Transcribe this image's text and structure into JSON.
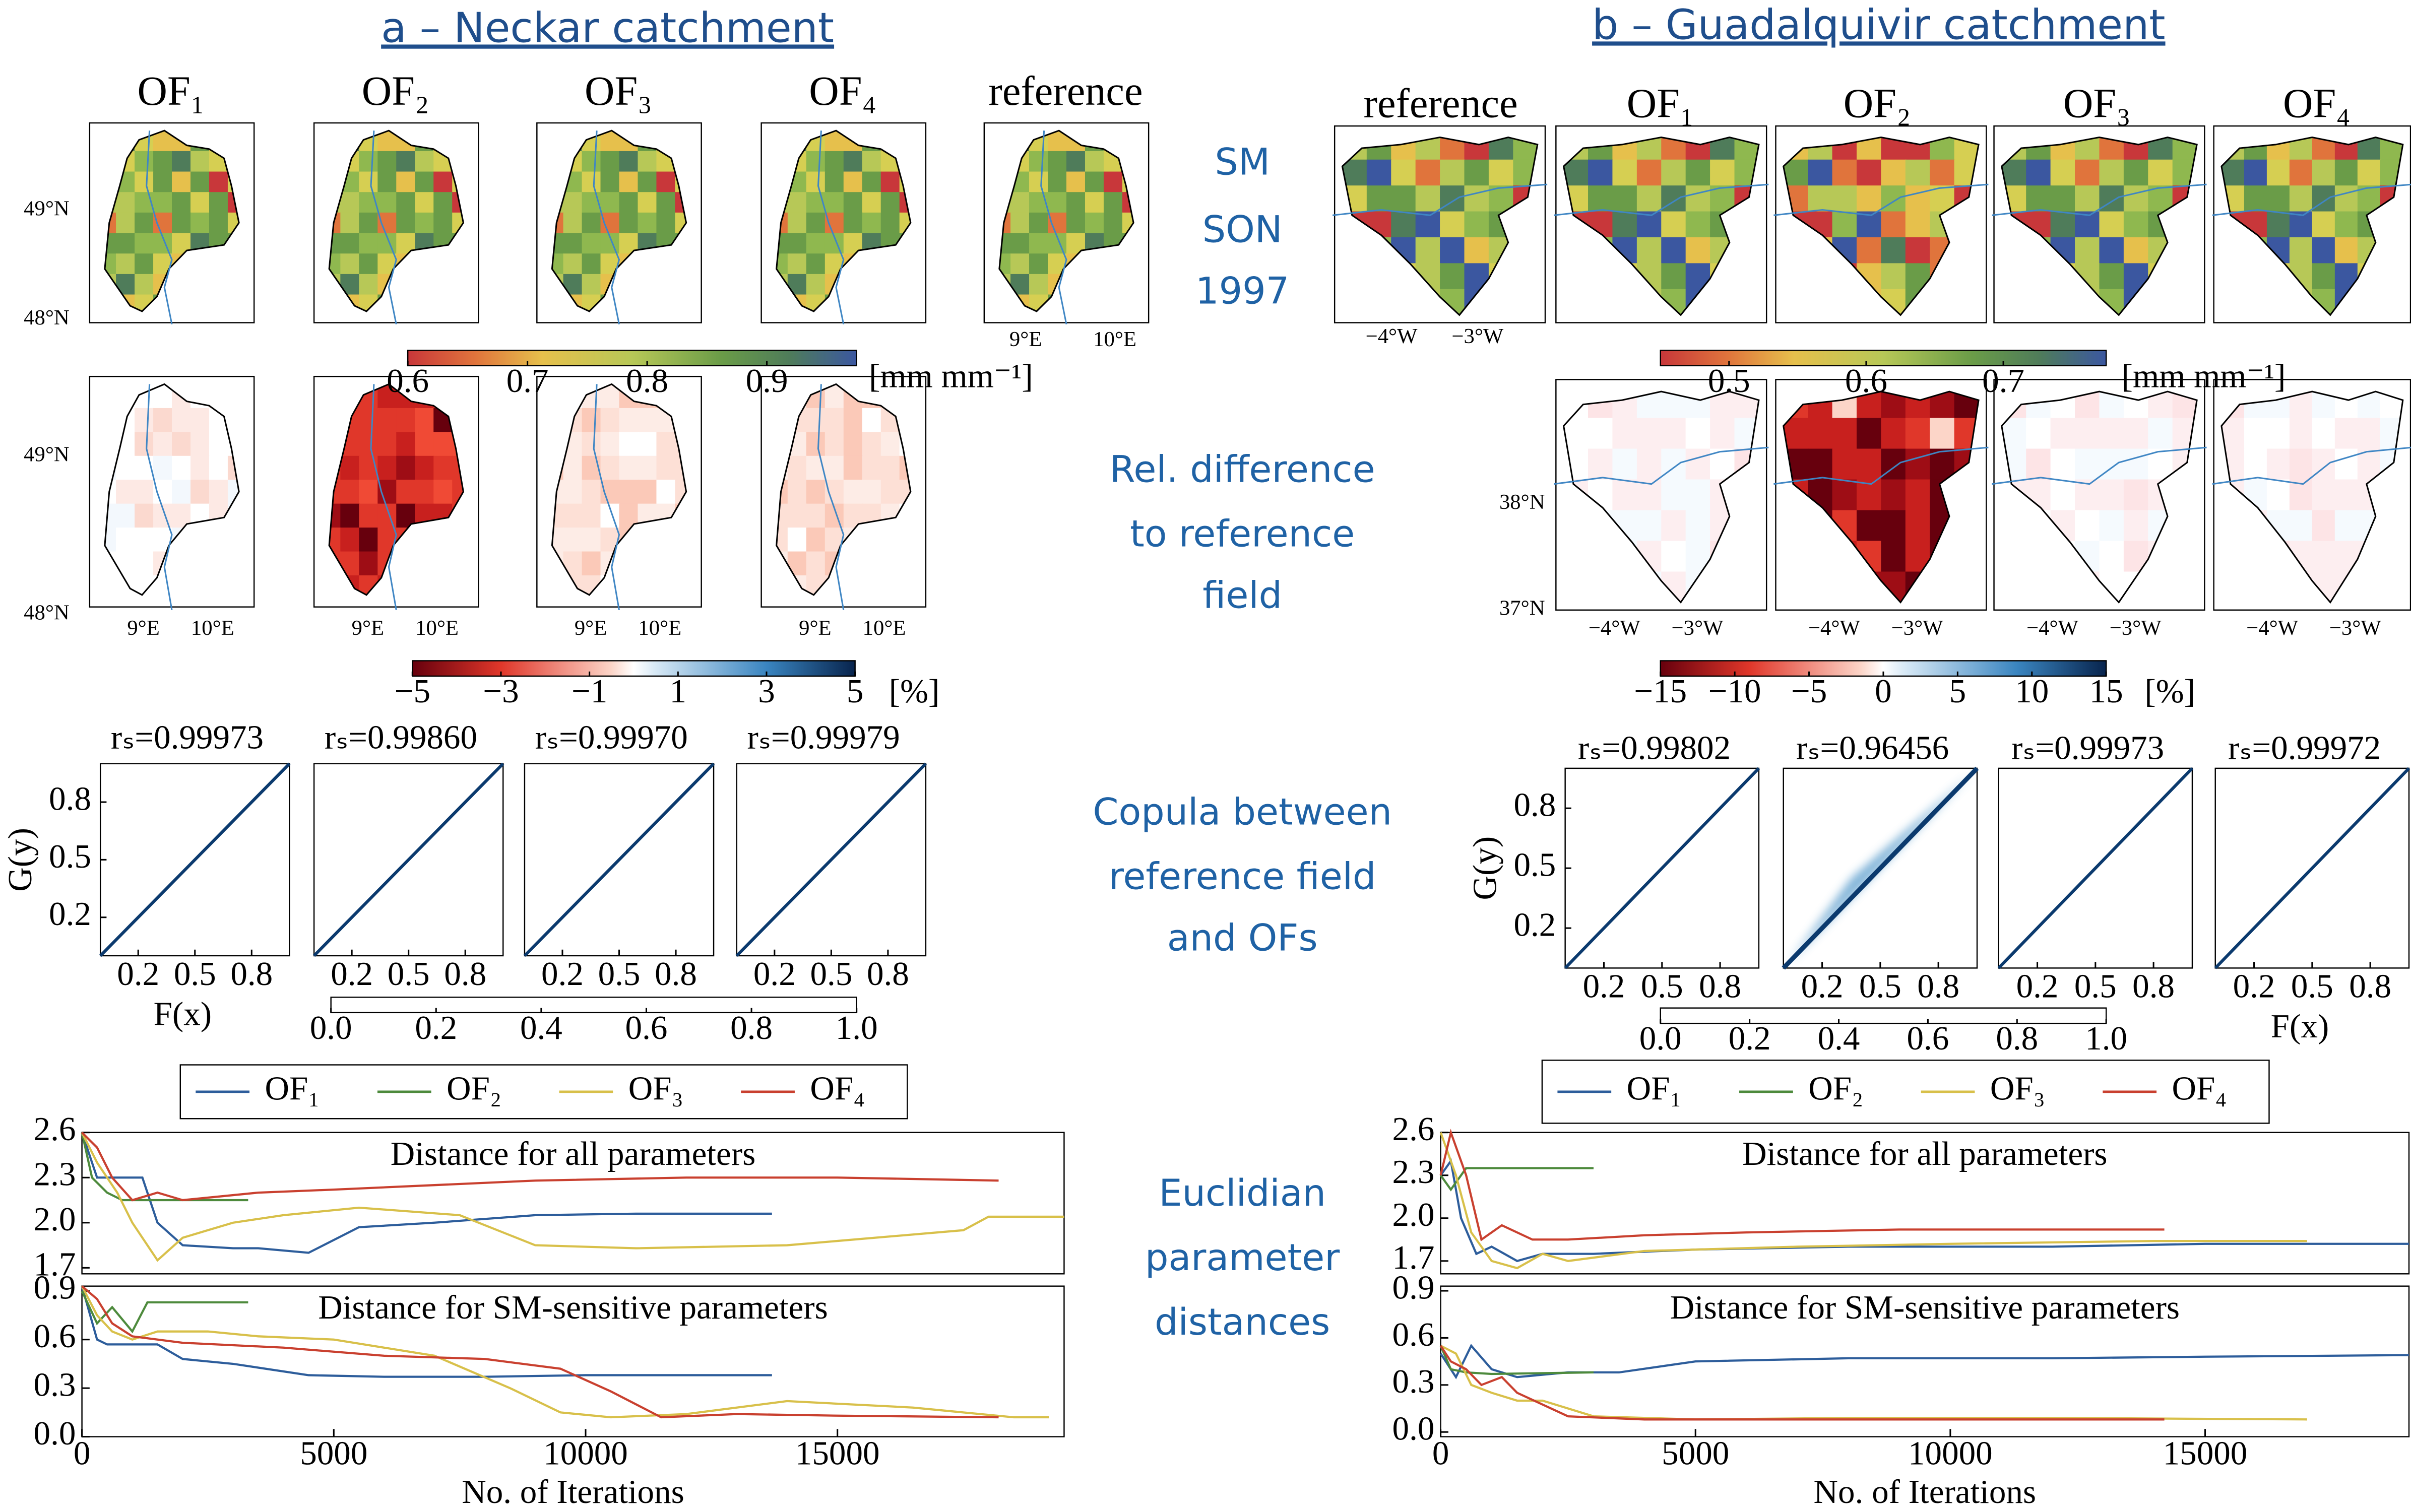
{
  "panels": [
    {
      "title": "a – Neckar catchment",
      "map_titles": [
        "OF₁",
        "OF₂",
        "OF₃",
        "OF₄",
        "reference"
      ],
      "lat_labels": [
        "49°N",
        "48°N"
      ],
      "lon_labels": [
        "9°E",
        "10°E"
      ],
      "sm_colorbar": {
        "lim": [
          0.6,
          0.975
        ],
        "ticks": [
          0.6,
          0.7,
          0.8,
          0.9
        ],
        "unit": "[mm mm⁻¹]"
      },
      "diff_colorbar": {
        "lim": [
          -5,
          5
        ],
        "ticks": [
          {
            "value": -5,
            "label": "−5"
          },
          {
            "value": -3,
            "label": "−3"
          },
          {
            "value": -1,
            "label": "−1"
          },
          1,
          3,
          5
        ],
        "unit": "[%]"
      },
      "copula": {
        "rs": [
          "rₛ=0.99973",
          "rₛ=0.99860",
          "rₛ=0.99970",
          "rₛ=0.99979"
        ],
        "lim": [
          0,
          1
        ],
        "ticks": [
          0.2,
          0.5,
          0.8
        ],
        "xlabel": "F(x)",
        "ylabel": "G(y)",
        "colorbar": {
          "lim": [
            0,
            1
          ],
          "ticks": [
            {
              "value": 0,
              "label": "0.0"
            },
            0.2,
            0.4,
            0.6,
            0.8,
            {
              "value": 1,
              "label": "1.0"
            }
          ]
        }
      }
    },
    {
      "title": "b – Guadalquivir catchment",
      "map_titles": [
        "reference",
        "OF₁",
        "OF₂",
        "OF₃",
        "OF₄"
      ],
      "lat_labels": [
        "38°N",
        "37°N"
      ],
      "lon_labels": [
        "−4°W",
        "−3°W"
      ],
      "sm_colorbar": {
        "lim": [
          0.45,
          0.775
        ],
        "ticks": [
          0.5,
          0.6,
          0.7
        ],
        "unit": "[mm mm⁻¹]"
      },
      "diff_colorbar": {
        "lim": [
          -15,
          15
        ],
        "ticks": [
          {
            "value": -15,
            "label": "−15"
          },
          {
            "value": -10,
            "label": "−10"
          },
          {
            "value": -5,
            "label": "−5"
          },
          0,
          5,
          10,
          15
        ],
        "unit": "[%]"
      },
      "copula": {
        "rs": [
          "rₛ=0.99802",
          "rₛ=0.96456",
          "rₛ=0.99973",
          "rₛ=0.99972"
        ],
        "lim": [
          0,
          1
        ],
        "ticks": [
          0.2,
          0.5,
          0.8
        ],
        "xlabel": "F(x)",
        "ylabel": "G(y)",
        "colorbar": {
          "lim": [
            0,
            1
          ],
          "ticks": [
            {
              "value": 0,
              "label": "0.0"
            },
            0.2,
            0.4,
            0.6,
            0.8,
            {
              "value": 1,
              "label": "1.0"
            }
          ]
        }
      }
    }
  ],
  "row_labels": [
    [
      "SM",
      "SON",
      "1997"
    ],
    [
      "Rel. difference",
      "to reference",
      "field"
    ],
    [
      "Copula between",
      "reference field",
      "and OFs"
    ],
    [
      "Euclidian",
      "parameter",
      "distances"
    ]
  ],
  "chart_data": [
    {
      "type": "line",
      "title": "Distance for all parameters",
      "xlim": [
        0,
        19500
      ],
      "ylim": [
        1.66,
        2.6
      ],
      "yticks": [
        1.7,
        {
          "value": 2,
          "label": "2.0"
        },
        2.3,
        2.6
      ],
      "series": [
        {
          "name": "OF₁",
          "color": "#2d5d9b",
          "x": [
            0,
            300,
            600,
            1200,
            1500,
            2000,
            3000,
            3500,
            4500,
            5500,
            7000,
            9000,
            11000,
            13700
          ],
          "values": [
            2.6,
            2.3,
            2.3,
            2.3,
            2.0,
            1.85,
            1.83,
            1.83,
            1.8,
            1.97,
            2.0,
            2.05,
            2.06,
            2.06
          ]
        },
        {
          "name": "OF₂",
          "color": "#4d8a3c",
          "x": [
            0,
            200,
            500,
            800,
            1200,
            3300
          ],
          "values": [
            2.6,
            2.3,
            2.2,
            2.15,
            2.15,
            2.15
          ]
        },
        {
          "name": "OF₃",
          "color": "#d8c04a",
          "x": [
            0,
            300,
            700,
            1000,
            1500,
            2000,
            2500,
            3000,
            4000,
            5500,
            7500,
            9000,
            11000,
            14000,
            17500,
            18000,
            19500
          ],
          "values": [
            2.6,
            2.4,
            2.2,
            2.0,
            1.75,
            1.9,
            1.95,
            2.0,
            2.05,
            2.1,
            2.05,
            1.85,
            1.83,
            1.85,
            1.95,
            2.04,
            2.04
          ]
        },
        {
          "name": "OF₄",
          "color": "#c9402f",
          "x": [
            0,
            300,
            600,
            1000,
            1500,
            2000,
            3500,
            5000,
            7000,
            9000,
            12000,
            15000,
            18200
          ],
          "values": [
            2.6,
            2.5,
            2.3,
            2.15,
            2.2,
            2.15,
            2.2,
            2.22,
            2.25,
            2.28,
            2.3,
            2.3,
            2.28
          ]
        }
      ]
    },
    {
      "type": "line",
      "title": "Distance for SM-sensitive parameters",
      "xlabel": "No. of Iterations",
      "xlim": [
        0,
        19500
      ],
      "ylim": [
        0,
        0.93
      ],
      "xticks": [
        0,
        5000,
        10000,
        15000
      ],
      "yticks": [
        {
          "value": 0,
          "label": "0.0"
        },
        0.3,
        0.6,
        0.9
      ],
      "series": [
        {
          "color": "#2d5d9b",
          "x": [
            0,
            300,
            500,
            1500,
            2000,
            3000,
            4500,
            6000,
            8000,
            10000,
            13700
          ],
          "values": [
            0.93,
            0.6,
            0.57,
            0.57,
            0.48,
            0.45,
            0.38,
            0.37,
            0.37,
            0.38,
            0.38
          ]
        },
        {
          "color": "#4d8a3c",
          "x": [
            0,
            300,
            600,
            1000,
            1300,
            3300
          ],
          "values": [
            0.9,
            0.7,
            0.8,
            0.65,
            0.83,
            0.83
          ]
        },
        {
          "color": "#d8c04a",
          "x": [
            0,
            300,
            600,
            1000,
            1500,
            2500,
            3500,
            5000,
            7000,
            8500,
            9500,
            10500,
            12000,
            14000,
            16500,
            18500,
            19200
          ],
          "values": [
            0.93,
            0.75,
            0.65,
            0.6,
            0.65,
            0.65,
            0.62,
            0.6,
            0.5,
            0.3,
            0.15,
            0.12,
            0.14,
            0.22,
            0.18,
            0.12,
            0.12
          ]
        },
        {
          "color": "#c9402f",
          "x": [
            0,
            300,
            600,
            1000,
            2000,
            4000,
            6000,
            8000,
            9500,
            10500,
            11500,
            13000,
            15000,
            18200
          ],
          "values": [
            0.93,
            0.85,
            0.7,
            0.62,
            0.58,
            0.55,
            0.5,
            0.48,
            0.42,
            0.28,
            0.12,
            0.14,
            0.13,
            0.12
          ]
        }
      ]
    },
    {
      "type": "line",
      "title": "Distance for all parameters",
      "xlim": [
        0,
        19000
      ],
      "ylim": [
        1.61,
        2.6
      ],
      "yticks": [
        1.7,
        {
          "value": 2,
          "label": "2.0"
        },
        2.3,
        2.6
      ],
      "series": [
        {
          "name": "OF₁",
          "color": "#2d5d9b",
          "x": [
            0,
            200,
            400,
            700,
            1000,
            1500,
            2000,
            3000,
            5000,
            8000,
            12000,
            15000,
            19000
          ],
          "values": [
            2.3,
            2.4,
            2.0,
            1.75,
            1.8,
            1.7,
            1.75,
            1.75,
            1.78,
            1.8,
            1.8,
            1.82,
            1.82
          ]
        },
        {
          "name": "OF₂",
          "color": "#4d8a3c",
          "x": [
            0,
            200,
            500,
            1000,
            3000
          ],
          "values": [
            2.3,
            2.2,
            2.35,
            2.35,
            2.35
          ]
        },
        {
          "name": "OF₃",
          "color": "#d8c04a",
          "x": [
            0,
            300,
            600,
            1000,
            1500,
            2000,
            2500,
            4000,
            7000,
            10000,
            14000,
            17000
          ],
          "values": [
            2.6,
            2.3,
            1.9,
            1.7,
            1.65,
            1.75,
            1.7,
            1.77,
            1.8,
            1.82,
            1.84,
            1.84
          ]
        },
        {
          "name": "OF₄",
          "color": "#c9402f",
          "x": [
            0,
            200,
            500,
            800,
            1200,
            1800,
            2500,
            4000,
            6000,
            9000,
            12000,
            14200
          ],
          "values": [
            2.3,
            2.6,
            2.3,
            1.85,
            1.95,
            1.85,
            1.85,
            1.88,
            1.9,
            1.92,
            1.92,
            1.92
          ]
        }
      ]
    },
    {
      "type": "line",
      "title": "Distance for SM-sensitive parameters",
      "xlabel": "No. of Iterations",
      "xlim": [
        0,
        19000
      ],
      "ylim": [
        -0.03,
        0.93
      ],
      "xticks": [
        0,
        5000,
        10000,
        15000
      ],
      "yticks": [
        {
          "value": 0,
          "label": "0.0"
        },
        0.3,
        0.6,
        0.9
      ],
      "series": [
        {
          "color": "#2d5d9b",
          "x": [
            0,
            300,
            600,
            1000,
            1500,
            2500,
            3500,
            5000,
            8000,
            12000,
            15000,
            19000
          ],
          "values": [
            0.5,
            0.35,
            0.55,
            0.4,
            0.35,
            0.38,
            0.38,
            0.45,
            0.47,
            0.47,
            0.48,
            0.49
          ]
        },
        {
          "color": "#4d8a3c",
          "x": [
            0,
            200,
            500,
            1000,
            3000
          ],
          "values": [
            0.55,
            0.4,
            0.38,
            0.37,
            0.38
          ]
        },
        {
          "color": "#d8c04a",
          "x": [
            0,
            300,
            600,
            1000,
            1500,
            2000,
            3000,
            5000,
            8000,
            12000,
            17000
          ],
          "values": [
            0.55,
            0.5,
            0.3,
            0.25,
            0.2,
            0.2,
            0.1,
            0.08,
            0.09,
            0.09,
            0.08
          ]
        },
        {
          "color": "#c9402f",
          "x": [
            0,
            200,
            500,
            800,
            1200,
            1500,
            2500,
            4000,
            8000,
            14200
          ],
          "values": [
            0.55,
            0.45,
            0.4,
            0.3,
            0.35,
            0.25,
            0.1,
            0.08,
            0.08,
            0.08
          ]
        }
      ]
    }
  ]
}
